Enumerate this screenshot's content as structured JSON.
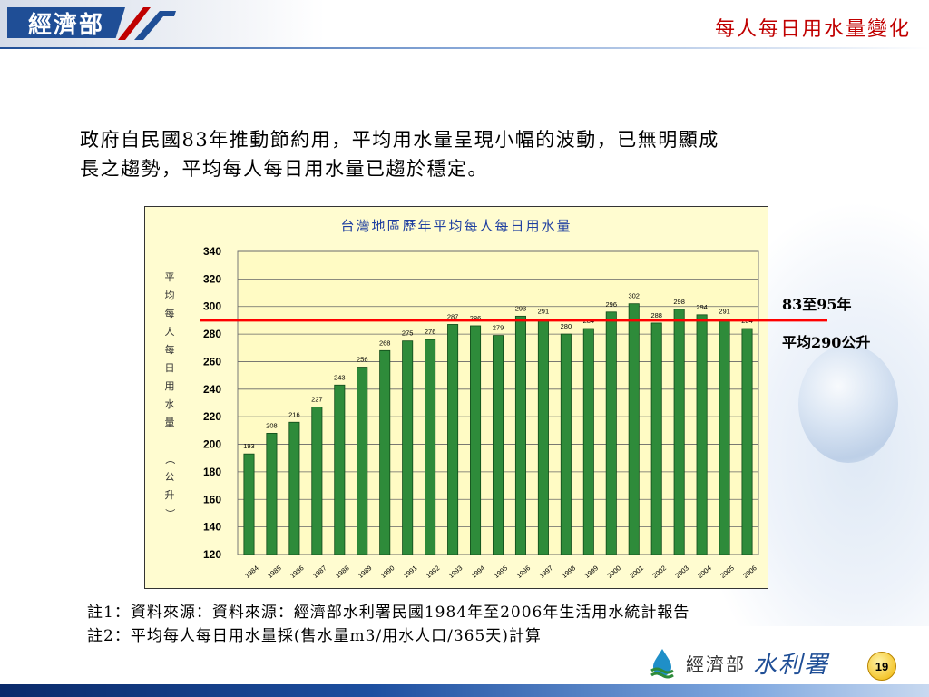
{
  "header": {
    "logo_text": "經濟部",
    "slide_title": "每人每日用水量變化"
  },
  "intro": {
    "line1": "政府自民國83年推動節約用，平均用水量呈現小幅的波動，已無明顯成",
    "line2": "長之趨勢，平均每人每日用水量已趨於穩定。"
  },
  "annotation": {
    "line1": "83至95年",
    "line2": "平均290公升"
  },
  "notes": {
    "note1": "註1：資料來源：資料來源：經濟部水利署民國1984年至2006年生活用水統計報告",
    "note2": "註2：平均每人每日用水量採(售水量m3/用水人口/365天)計算"
  },
  "footer": {
    "org": "經濟部",
    "brand": "水利署",
    "page_number": "19"
  },
  "colors": {
    "bar": "#2e8b3a",
    "average_line": "#ff0000",
    "title": "#c00000",
    "chart_bg": "#fffcd0"
  },
  "chart_data": {
    "type": "bar",
    "title": "台灣地區歷年平均每人每日用水量",
    "ylabel": "平均每人每日用水量（公升）",
    "ylabel_chars": [
      "平",
      "均",
      "每",
      "人",
      "每",
      "日",
      "用",
      "水",
      "量",
      "",
      "（",
      "公",
      "升",
      "）"
    ],
    "categories": [
      "1984",
      "1985",
      "1986",
      "1987",
      "1988",
      "1989",
      "1990",
      "1991",
      "1992",
      "1993",
      "1994",
      "1995",
      "1996",
      "1997",
      "1998",
      "1999",
      "2000",
      "2001",
      "2002",
      "2003",
      "2004",
      "2005",
      "2006"
    ],
    "values": [
      193,
      208,
      216,
      227,
      243,
      256,
      268,
      275,
      276,
      287,
      286,
      279,
      293,
      291,
      280,
      284,
      296,
      302,
      288,
      298,
      294,
      291,
      284
    ],
    "ylim": [
      120,
      340
    ],
    "yticks": [
      120,
      140,
      160,
      180,
      200,
      220,
      240,
      260,
      280,
      300,
      320,
      340
    ],
    "reference_line": 290,
    "grid": true
  }
}
